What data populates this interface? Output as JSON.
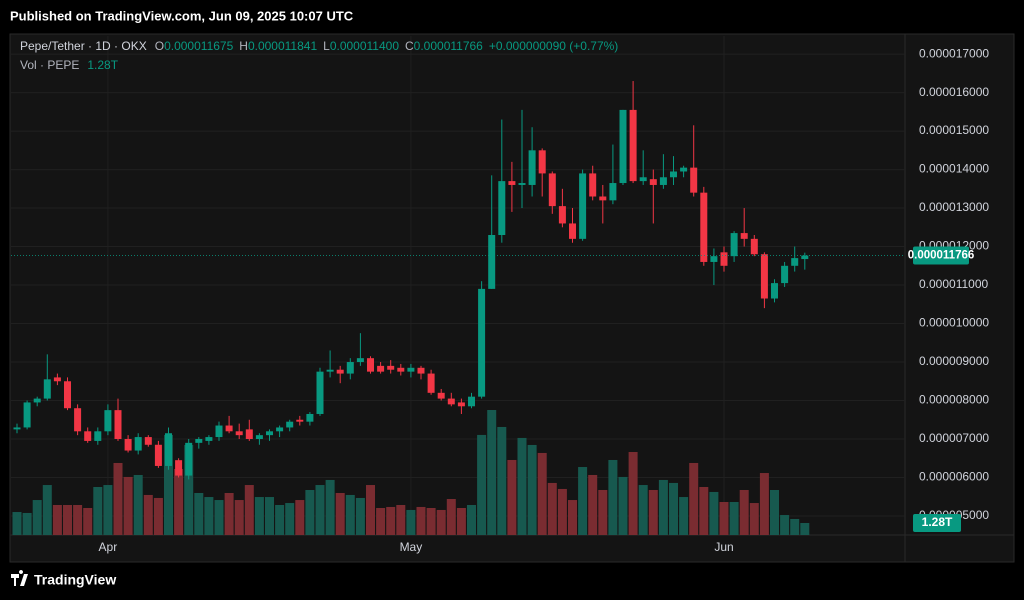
{
  "published": "Published on TradingView.com, Jun 09, 2025 10:07 UTC",
  "brand": "TradingView",
  "header": {
    "symbol": "Pepe/Tether · 1D · OKX",
    "open_key": "O",
    "open": "0.000011675",
    "high_key": "H",
    "high": "0.000011841",
    "low_key": "L",
    "low": "0.000011400",
    "close_key": "C",
    "close": "0.000011766",
    "change": "+0.000000090 (+0.77%)",
    "volume_key": "Vol · PEPE",
    "volume": "1.28T"
  },
  "chart_data": {
    "type": "candlestick",
    "categories": [
      null,
      null,
      null,
      null,
      null,
      null,
      null,
      null,
      null,
      "Apr",
      null,
      null,
      null,
      null,
      null,
      null,
      null,
      null,
      null,
      null,
      null,
      null,
      null,
      null,
      null,
      null,
      null,
      null,
      null,
      null,
      null,
      null,
      null,
      null,
      null,
      null,
      null,
      null,
      null,
      "May",
      null,
      null,
      null,
      null,
      null,
      null,
      null,
      null,
      null,
      null,
      null,
      null,
      null,
      null,
      null,
      null,
      null,
      null,
      null,
      null,
      null,
      null,
      null,
      null,
      null,
      null,
      null,
      null,
      null,
      null,
      "Jun",
      null,
      null,
      null,
      null,
      null,
      null,
      null,
      null
    ],
    "open": [
      7.25e-06,
      7.3e-06,
      7.95e-06,
      8.05e-06,
      8.6e-06,
      8.5e-06,
      7.8e-06,
      7.2e-06,
      6.95e-06,
      7.2e-06,
      7.75e-06,
      7e-06,
      6.7e-06,
      7.05e-06,
      6.85e-06,
      6.3e-06,
      6.45e-06,
      6.05e-06,
      6.9e-06,
      6.95e-06,
      7.05e-06,
      7.35e-06,
      7.2e-06,
      7.25e-06,
      7e-06,
      7.1e-06,
      7.2e-06,
      7.3e-06,
      7.5e-06,
      7.45e-06,
      7.65e-06,
      8.75e-06,
      8.8e-06,
      8.7e-06,
      9e-06,
      9.1e-06,
      8.9e-06,
      8.9e-06,
      8.85e-06,
      8.75e-06,
      8.85e-06,
      8.7e-06,
      8.2e-06,
      8.05e-06,
      7.95e-06,
      7.85e-06,
      8.1e-06,
      1.09e-05,
      1.23e-05,
      1.37e-05,
      1.36e-05,
      1.36e-05,
      1.45e-05,
      1.39e-05,
      1.305e-05,
      1.26e-05,
      1.22e-05,
      1.39e-05,
      1.33e-05,
      1.32e-05,
      1.365e-05,
      1.555e-05,
      1.37e-05,
      1.375e-05,
      1.36e-05,
      1.38e-05,
      1.395e-05,
      1.405e-05,
      1.34e-05,
      1.16e-05,
      1.185e-05,
      1.175e-05,
      1.235e-05,
      1.22e-05,
      1.18e-05,
      1.065e-05,
      1.105e-05,
      1.15e-05,
      1.1675e-05
    ],
    "high": [
      7.4e-06,
      8e-06,
      8.1e-06,
      9.2e-06,
      8.7e-06,
      8.6e-06,
      7.9e-06,
      7.3e-06,
      7.3e-06,
      7.9e-06,
      8.05e-06,
      7.1e-06,
      7.15e-06,
      7.1e-06,
      6.95e-06,
      7.3e-06,
      6.5e-06,
      7e-06,
      7.05e-06,
      7.1e-06,
      7.45e-06,
      7.6e-06,
      7.4e-06,
      7.5e-06,
      7.15e-06,
      7.25e-06,
      7.35e-06,
      7.5e-06,
      7.6e-06,
      7.7e-06,
      8.85e-06,
      9.3e-06,
      8.9e-06,
      9.1e-06,
      9.75e-06,
      9.15e-06,
      9e-06,
      9.05e-06,
      8.95e-06,
      8.95e-06,
      8.9e-06,
      8.8e-06,
      8.3e-06,
      8.2e-06,
      8.05e-06,
      8.2e-06,
      1.11e-05,
      1.385e-05,
      1.53e-05,
      1.42e-05,
      1.555e-05,
      1.51e-05,
      1.455e-05,
      1.395e-05,
      1.35e-05,
      1.3e-05,
      1.4e-05,
      1.41e-05,
      1.36e-05,
      1.465e-05,
      1.555e-05,
      1.63e-05,
      1.45e-05,
      1.4e-05,
      1.44e-05,
      1.435e-05,
      1.41e-05,
      1.515e-05,
      1.355e-05,
      1.195e-05,
      1.2e-05,
      1.24e-05,
      1.3e-05,
      1.23e-05,
      1.185e-05,
      1.115e-05,
      1.16e-05,
      1.2e-05,
      1.1841e-05
    ],
    "low": [
      7.15e-06,
      7.25e-06,
      7.85e-06,
      8e-06,
      8.4e-06,
      7.75e-06,
      7.1e-06,
      6.9e-06,
      6.85e-06,
      7.1e-06,
      6.95e-06,
      6.65e-06,
      6.6e-06,
      6.8e-06,
      6.25e-06,
      6.2e-06,
      6e-06,
      5.95e-06,
      6.75e-06,
      6.85e-06,
      6.95e-06,
      7.15e-06,
      7e-06,
      6.95e-06,
      6.85e-06,
      6.95e-06,
      7.05e-06,
      7.2e-06,
      7.35e-06,
      7.35e-06,
      7.6e-06,
      8.6e-06,
      8.45e-06,
      8.55e-06,
      8.9e-06,
      8.7e-06,
      8.7e-06,
      8.7e-06,
      8.65e-06,
      8.6e-06,
      8.55e-06,
      8.15e-06,
      8e-06,
      7.85e-06,
      7.65e-06,
      7.8e-06,
      8.05e-06,
      1.09e-05,
      1.21e-05,
      1.29e-05,
      1.3e-05,
      1.33e-05,
      1.33e-05,
      1.285e-05,
      1.25e-05,
      1.21e-05,
      1.215e-05,
      1.32e-05,
      1.26e-05,
      1.31e-05,
      1.36e-05,
      1.365e-05,
      1.36e-05,
      1.26e-05,
      1.35e-05,
      1.36e-05,
      1.38e-05,
      1.33e-05,
      1.15e-05,
      1.1e-05,
      1.135e-05,
      1.16e-05,
      1.2e-05,
      1.175e-05,
      1.04e-05,
      1.055e-05,
      1.095e-05,
      1.135e-05,
      1.14e-05
    ],
    "close": [
      7.3e-06,
      7.95e-06,
      8.05e-06,
      8.55e-06,
      8.5e-06,
      7.8e-06,
      7.2e-06,
      6.95e-06,
      7.2e-06,
      7.75e-06,
      7e-06,
      6.7e-06,
      7.05e-06,
      6.85e-06,
      6.3e-06,
      7.15e-06,
      6.05e-06,
      6.9e-06,
      7e-06,
      7.05e-06,
      7.35e-06,
      7.2e-06,
      7.1e-06,
      7e-06,
      7.1e-06,
      7.2e-06,
      7.3e-06,
      7.45e-06,
      7.45e-06,
      7.65e-06,
      8.75e-06,
      8.8e-06,
      8.7e-06,
      9e-06,
      9.1e-06,
      8.75e-06,
      8.75e-06,
      8.8e-06,
      8.75e-06,
      8.85e-06,
      8.7e-06,
      8.2e-06,
      8.05e-06,
      7.9e-06,
      7.85e-06,
      8.1e-06,
      1.09e-05,
      1.23e-05,
      1.37e-05,
      1.36e-05,
      1.365e-05,
      1.45e-05,
      1.39e-05,
      1.305e-05,
      1.26e-05,
      1.22e-05,
      1.39e-05,
      1.33e-05,
      1.32e-05,
      1.365e-05,
      1.555e-05,
      1.37e-05,
      1.38e-05,
      1.36e-05,
      1.38e-05,
      1.395e-05,
      1.405e-05,
      1.34e-05,
      1.16e-05,
      1.175e-05,
      1.15e-05,
      1.235e-05,
      1.22e-05,
      1.18e-05,
      1.065e-05,
      1.105e-05,
      1.15e-05,
      1.17e-05,
      1.1766e-05
    ],
    "volume": [
      2.45,
      2.35,
      3.73,
      5.33,
      3.2,
      3.2,
      3.2,
      2.88,
      5.12,
      5.33,
      7.68,
      6.19,
      6.4,
      4.27,
      3.95,
      10.67,
      7.04,
      9.6,
      4.48,
      4.05,
      3.73,
      4.48,
      3.73,
      5.33,
      4.05,
      4.05,
      3.2,
      3.41,
      3.73,
      4.8,
      5.33,
      5.87,
      4.48,
      4.27,
      3.95,
      5.33,
      2.88,
      2.99,
      3.2,
      2.67,
      2.99,
      2.88,
      2.67,
      3.84,
      2.88,
      3.2,
      10.67,
      13.33,
      11.52,
      8.0,
      10.35,
      9.6,
      8.75,
      5.55,
      4.91,
      3.73,
      7.25,
      6.4,
      4.8,
      8.0,
      6.19,
      8.85,
      5.33,
      4.8,
      5.87,
      5.55,
      4.05,
      7.68,
      5.12,
      4.59,
      3.52,
      3.52,
      4.8,
      3.41,
      6.61,
      4.8,
      2.13,
      1.71,
      1.28
    ],
    "volume_label": "1.28T",
    "last_price_label": "0.000011766",
    "ylim": [
      4.506e-06,
      1.747e-05
    ],
    "yticks": [
      {
        "value": 5e-06,
        "label": "0.000005000"
      },
      {
        "value": 6e-06,
        "label": "0.000006000"
      },
      {
        "value": 7e-06,
        "label": "0.000007000"
      },
      {
        "value": 8e-06,
        "label": "0.000008000"
      },
      {
        "value": 9e-06,
        "label": "0.000009000"
      },
      {
        "value": 1e-05,
        "label": "0.000010000"
      },
      {
        "value": 1.1e-05,
        "label": "0.000011000"
      },
      {
        "value": 1.2e-05,
        "label": "0.000012000"
      },
      {
        "value": 1.3e-05,
        "label": "0.000013000"
      },
      {
        "value": 1.4e-05,
        "label": "0.000014000"
      },
      {
        "value": 1.5e-05,
        "label": "0.000015000"
      },
      {
        "value": 1.6e-05,
        "label": "0.000016000"
      },
      {
        "value": 1.7e-05,
        "label": "0.000017000"
      }
    ],
    "grid": true,
    "up_color": "#089981",
    "down_color": "#f23645",
    "volume_up_color": "#17594f",
    "volume_down_color": "#7a2c31"
  }
}
